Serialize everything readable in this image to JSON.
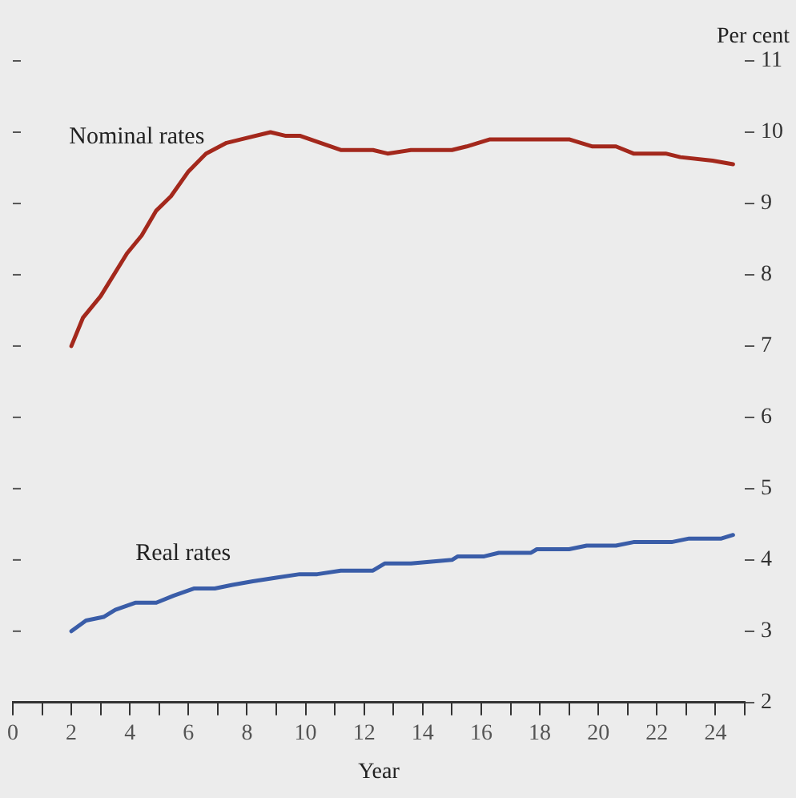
{
  "chart_data": {
    "type": "line",
    "xlabel": "Year",
    "ylabel": "Per cent",
    "xlim": [
      0,
      25
    ],
    "xticks": [
      0,
      {
        "value": 1,
        "label": null
      },
      2,
      {
        "value": 3,
        "label": null
      },
      4,
      {
        "value": 5,
        "label": null
      },
      6,
      {
        "value": 7,
        "label": null
      },
      8,
      {
        "value": 9,
        "label": null
      },
      10,
      {
        "value": 11,
        "label": null
      },
      12,
      {
        "value": 13,
        "label": null
      },
      14,
      {
        "value": 15,
        "label": null
      },
      16,
      {
        "value": 17,
        "label": null
      },
      18,
      {
        "value": 19,
        "label": null
      },
      20,
      {
        "value": 21,
        "label": null
      },
      22,
      {
        "value": 23,
        "label": null
      },
      24,
      {
        "value": 25,
        "label": null
      }
    ],
    "ylim": [
      2,
      11
    ],
    "yticks": [
      2,
      3,
      4,
      5,
      6,
      7,
      8,
      9,
      10,
      11
    ],
    "grid": false,
    "legend": false,
    "marker": "none",
    "line_style": "solid",
    "series": [
      {
        "name": "Nominal rates",
        "color": "#a3281c",
        "x": [
          2.0,
          2.4,
          3.0,
          3.9,
          4.4,
          4.9,
          5.4,
          6.0,
          6.6,
          7.3,
          7.8,
          8.8,
          9.3,
          9.8,
          11.2,
          12.3,
          12.8,
          13.6,
          15.0,
          15.5,
          16.3,
          19.0,
          19.8,
          20.6,
          21.2,
          22.3,
          22.8,
          23.9,
          24.6
        ],
        "values": [
          7.0,
          7.4,
          7.7,
          8.3,
          8.55,
          8.9,
          9.1,
          9.45,
          9.7,
          9.85,
          9.9,
          10.0,
          9.95,
          9.95,
          9.75,
          9.75,
          9.7,
          9.75,
          9.75,
          9.8,
          9.9,
          9.9,
          9.8,
          9.8,
          9.7,
          9.7,
          9.65,
          9.6,
          9.55
        ]
      },
      {
        "name": "Real rates",
        "color": "#3a5da8",
        "x": [
          2.0,
          2.5,
          3.1,
          3.5,
          4.2,
          4.9,
          5.5,
          6.2,
          6.9,
          7.5,
          8.2,
          9.0,
          9.8,
          10.4,
          11.2,
          12.3,
          12.7,
          13.6,
          15.0,
          15.2,
          16.1,
          16.6,
          17.7,
          17.9,
          19.0,
          19.6,
          20.6,
          21.2,
          22.5,
          23.1,
          24.2,
          24.6
        ],
        "values": [
          3.0,
          3.15,
          3.2,
          3.3,
          3.4,
          3.4,
          3.5,
          3.6,
          3.6,
          3.65,
          3.7,
          3.75,
          3.8,
          3.8,
          3.85,
          3.85,
          3.95,
          3.95,
          4.0,
          4.05,
          4.05,
          4.1,
          4.1,
          4.15,
          4.15,
          4.2,
          4.2,
          4.25,
          4.25,
          4.3,
          4.3,
          4.35
        ]
      }
    ]
  }
}
